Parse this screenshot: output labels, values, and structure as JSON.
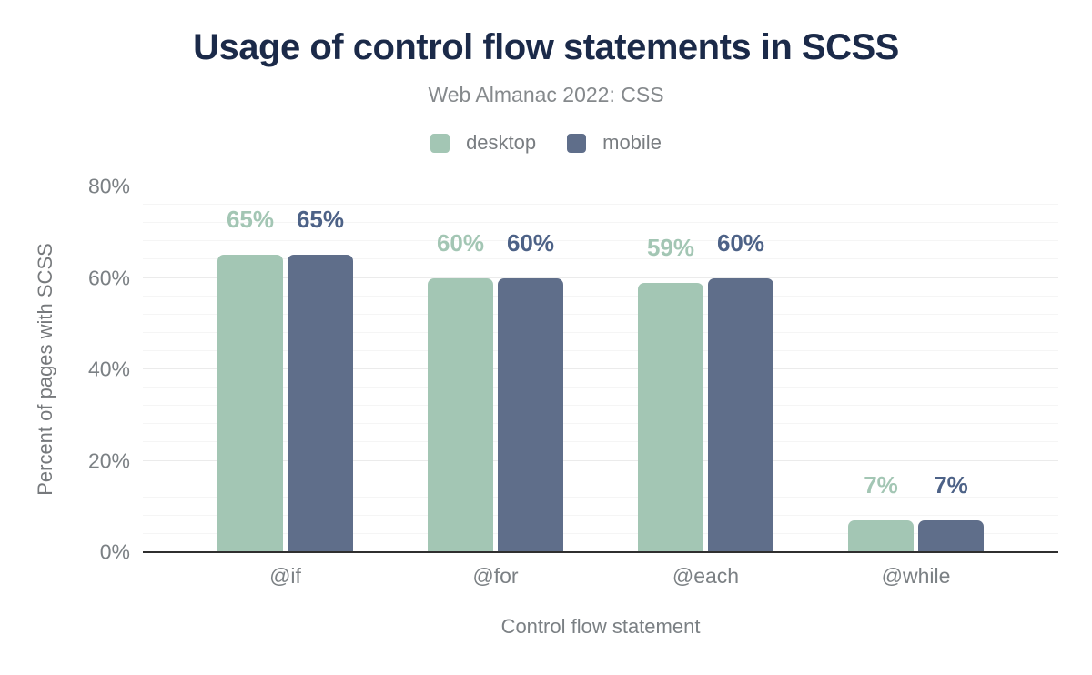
{
  "header": {
    "title": "Usage of control flow statements in SCSS",
    "subtitle": "Web Almanac 2022: CSS"
  },
  "legend": {
    "items": [
      {
        "label": "desktop",
        "color": "#a3c6b4"
      },
      {
        "label": "mobile",
        "color": "#5f6e8a"
      }
    ]
  },
  "colors": {
    "title": "#1b2a49",
    "axis_text": "#7b8084",
    "desktop_bar": "#a3c6b4",
    "mobile_bar": "#5f6e8a",
    "desktop_label": "#a3c6b4",
    "mobile_label": "#4d6287",
    "grid_minor": "#f5f5f5",
    "grid_major": "#ebebeb",
    "baseline": "#2f2f2f"
  },
  "chart_data": {
    "type": "bar",
    "title": "Usage of control flow statements in SCSS",
    "subtitle": "Web Almanac 2022: CSS",
    "categories": [
      "@if",
      "@for",
      "@each",
      "@while"
    ],
    "series": [
      {
        "name": "desktop",
        "color": "#a3c6b4",
        "label_color": "#a3c6b4",
        "values": [
          65,
          60,
          59,
          7
        ],
        "labels": [
          "65%",
          "60%",
          "59%",
          "7%"
        ]
      },
      {
        "name": "mobile",
        "color": "#5f6e8a",
        "label_color": "#4d6287",
        "values": [
          65,
          60,
          60,
          7
        ],
        "labels": [
          "65%",
          "60%",
          "60%",
          "7%"
        ]
      }
    ],
    "xlabel": "Control flow statement",
    "ylabel": "Percent of pages with SCSS",
    "ylim": [
      0,
      80
    ],
    "yticks": [
      {
        "value": 0,
        "label": "0%"
      },
      {
        "value": 20,
        "label": "20%"
      },
      {
        "value": 40,
        "label": "40%"
      },
      {
        "value": 60,
        "label": "60%"
      },
      {
        "value": 80,
        "label": "80%"
      }
    ],
    "grid": {
      "on": true,
      "minor_step": 4,
      "major_step": 20
    },
    "legend_position": "top"
  }
}
